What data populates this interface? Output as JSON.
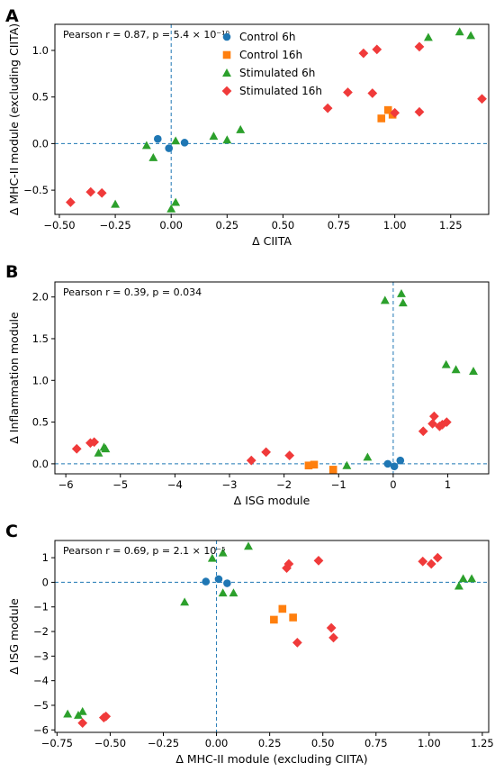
{
  "colors": {
    "Control 6h": "#1f77b4",
    "Control 16h": "#ff7f0e",
    "Stimulated 6h": "#2ca02c",
    "Stimulated 16h": "#f03a3a",
    "reference_line": "#1f77b4"
  },
  "markers": {
    "Control 6h": "circle",
    "Control 16h": "square",
    "Stimulated 6h": "triangle",
    "Stimulated 16h": "diamond"
  },
  "chart_data": [
    {
      "panel": "A",
      "type": "scatter",
      "xlabel": "Δ CIITA",
      "ylabel": "Δ MHC-II module (excluding CIITA)",
      "annotation": "Pearson r = 0.87, p = 5.4 × 10⁻¹⁰",
      "xlim": [
        -0.52,
        1.42
      ],
      "ylim": [
        -0.76,
        1.28
      ],
      "xticks": [
        -0.5,
        -0.25,
        0.0,
        0.25,
        0.5,
        0.75,
        1.0,
        1.25
      ],
      "xtick_labels": [
        "−0.50",
        "−0.25",
        "0.00",
        "0.25",
        "0.50",
        "0.75",
        "1.00",
        "1.25"
      ],
      "yticks": [
        -0.5,
        0.0,
        0.5,
        1.0
      ],
      "ytick_labels": [
        "−0.5",
        "0.0",
        "0.5",
        "1.0"
      ],
      "ref_x": 0,
      "ref_y": 0,
      "legend": true,
      "legend_position": "top-center",
      "series": [
        {
          "name": "Control 6h",
          "points": [
            [
              -0.06,
              0.05
            ],
            [
              -0.01,
              -0.05
            ],
            [
              0.06,
              0.01
            ]
          ]
        },
        {
          "name": "Control 16h",
          "points": [
            [
              0.94,
              0.27
            ],
            [
              0.97,
              0.36
            ],
            [
              0.99,
              0.31
            ]
          ]
        },
        {
          "name": "Stimulated 6h",
          "points": [
            [
              -0.25,
              -0.65
            ],
            [
              -0.11,
              -0.02
            ],
            [
              -0.08,
              -0.15
            ],
            [
              0.0,
              -0.7
            ],
            [
              0.02,
              -0.63
            ],
            [
              0.02,
              0.03
            ],
            [
              0.19,
              0.08
            ],
            [
              0.25,
              0.04
            ],
            [
              0.31,
              0.15
            ],
            [
              1.15,
              1.14
            ],
            [
              1.29,
              1.2
            ],
            [
              1.34,
              1.16
            ]
          ]
        },
        {
          "name": "Stimulated 16h",
          "points": [
            [
              -0.45,
              -0.63
            ],
            [
              -0.36,
              -0.52
            ],
            [
              -0.31,
              -0.53
            ],
            [
              0.7,
              0.38
            ],
            [
              0.79,
              0.55
            ],
            [
              0.86,
              0.97
            ],
            [
              0.9,
              0.54
            ],
            [
              0.92,
              1.01
            ],
            [
              1.0,
              0.33
            ],
            [
              1.11,
              1.04
            ],
            [
              1.11,
              0.34
            ],
            [
              1.39,
              0.48
            ]
          ]
        }
      ]
    },
    {
      "panel": "B",
      "type": "scatter",
      "xlabel": "Δ ISG module",
      "ylabel": "Δ Inflammation module",
      "annotation": "Pearson r = 0.39, p = 0.034",
      "xlim": [
        -6.2,
        1.75
      ],
      "ylim": [
        -0.12,
        2.18
      ],
      "xticks": [
        -6,
        -5,
        -4,
        -3,
        -2,
        -1,
        0,
        1
      ],
      "xtick_labels": [
        "−6",
        "−5",
        "−4",
        "−3",
        "−2",
        "−1",
        "0",
        "1"
      ],
      "yticks": [
        0.0,
        0.5,
        1.0,
        1.5,
        2.0
      ],
      "ytick_labels": [
        "0.0",
        "0.5",
        "1.0",
        "1.5",
        "2.0"
      ],
      "ref_x": 0,
      "ref_y": 0,
      "legend": false,
      "series": [
        {
          "name": "Control 6h",
          "points": [
            [
              -0.1,
              0.0
            ],
            [
              0.02,
              -0.03
            ],
            [
              0.13,
              0.04
            ]
          ]
        },
        {
          "name": "Control 16h",
          "points": [
            [
              -1.55,
              -0.02
            ],
            [
              -1.45,
              -0.01
            ],
            [
              -1.1,
              -0.07
            ]
          ]
        },
        {
          "name": "Stimulated 6h",
          "points": [
            [
              -5.4,
              0.13
            ],
            [
              -5.3,
              0.2
            ],
            [
              -5.27,
              0.18
            ],
            [
              -0.85,
              -0.02
            ],
            [
              -0.47,
              0.08
            ],
            [
              -0.15,
              1.96
            ],
            [
              0.15,
              2.04
            ],
            [
              0.18,
              1.93
            ],
            [
              0.97,
              1.19
            ],
            [
              1.15,
              1.13
            ],
            [
              1.47,
              1.11
            ]
          ]
        },
        {
          "name": "Stimulated 16h",
          "points": [
            [
              -5.8,
              0.18
            ],
            [
              -5.55,
              0.25
            ],
            [
              -5.48,
              0.26
            ],
            [
              -2.6,
              0.04
            ],
            [
              -2.33,
              0.14
            ],
            [
              -1.9,
              0.1
            ],
            [
              0.55,
              0.39
            ],
            [
              0.72,
              0.48
            ],
            [
              0.75,
              0.57
            ],
            [
              0.85,
              0.45
            ],
            [
              0.9,
              0.47
            ],
            [
              0.98,
              0.5
            ]
          ]
        }
      ]
    },
    {
      "panel": "C",
      "type": "scatter",
      "xlabel": "Δ MHC-II module (excluding CIITA)",
      "ylabel": "Δ ISG module",
      "annotation": "Pearson r = 0.69, p = 2.1 × 10⁻⁵",
      "xlim": [
        -0.76,
        1.28
      ],
      "ylim": [
        -6.1,
        1.7
      ],
      "xticks": [
        -0.75,
        -0.5,
        -0.25,
        0.0,
        0.25,
        0.5,
        0.75,
        1.0,
        1.25
      ],
      "xtick_labels": [
        "−0.75",
        "−0.50",
        "−0.25",
        "0.00",
        "0.25",
        "0.50",
        "0.75",
        "1.00",
        "1.25"
      ],
      "yticks": [
        -6,
        -5,
        -4,
        -3,
        -2,
        -1,
        0,
        1
      ],
      "ytick_labels": [
        "−6",
        "−5",
        "−4",
        "−3",
        "−2",
        "−1",
        "0",
        "1"
      ],
      "ref_x": 0,
      "ref_y": 0,
      "legend": false,
      "series": [
        {
          "name": "Control 6h",
          "points": [
            [
              -0.05,
              0.03
            ],
            [
              0.01,
              0.13
            ],
            [
              0.05,
              -0.04
            ]
          ]
        },
        {
          "name": "Control 16h",
          "points": [
            [
              0.27,
              -1.52
            ],
            [
              0.31,
              -1.08
            ],
            [
              0.36,
              -1.43
            ]
          ]
        },
        {
          "name": "Stimulated 6h",
          "points": [
            [
              -0.7,
              -5.35
            ],
            [
              -0.65,
              -5.4
            ],
            [
              -0.63,
              -5.25
            ],
            [
              -0.15,
              -0.8
            ],
            [
              -0.02,
              0.98
            ],
            [
              0.03,
              1.2
            ],
            [
              0.03,
              -0.43
            ],
            [
              0.08,
              -0.43
            ],
            [
              0.15,
              1.47
            ],
            [
              1.14,
              -0.15
            ],
            [
              1.16,
              0.15
            ],
            [
              1.2,
              0.15
            ]
          ]
        },
        {
          "name": "Stimulated 16h",
          "points": [
            [
              -0.63,
              -5.72
            ],
            [
              -0.53,
              -5.5
            ],
            [
              -0.52,
              -5.45
            ],
            [
              0.33,
              0.58
            ],
            [
              0.34,
              0.75
            ],
            [
              0.38,
              -2.45
            ],
            [
              0.48,
              0.88
            ],
            [
              0.54,
              -1.85
            ],
            [
              0.55,
              -2.25
            ],
            [
              0.97,
              0.85
            ],
            [
              1.01,
              0.75
            ],
            [
              1.04,
              1.0
            ]
          ]
        }
      ]
    }
  ]
}
